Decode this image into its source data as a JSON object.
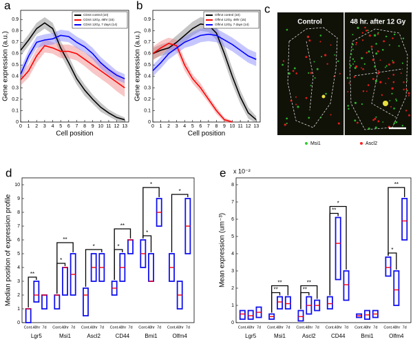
{
  "chart_data": [
    {
      "type": "line",
      "panel": "a",
      "xlabel": "Cell position",
      "ylabel": "Gene expression (a.u.)",
      "x": [
        0,
        1,
        2,
        3,
        4,
        5,
        6,
        7,
        8,
        9,
        10,
        11,
        12,
        13
      ],
      "xlim": [
        0,
        13.5
      ],
      "xticks": [
        0,
        1,
        2,
        3,
        4,
        5,
        6,
        7,
        8,
        9,
        10,
        11,
        12,
        13
      ],
      "ylim": [
        0,
        0.98
      ],
      "yticks": [
        0,
        0.1,
        0.2,
        0.3,
        0.4,
        0.5,
        0.6,
        0.7,
        0.8,
        0.9
      ],
      "legend": "upper right",
      "series": [
        {
          "name": "CD44 control (10)",
          "color": "#000000",
          "band_color": "#808080",
          "values": [
            0.63,
            0.72,
            0.82,
            0.87,
            0.82,
            0.65,
            0.52,
            0.38,
            0.28,
            0.2,
            0.13,
            0.08,
            0.04,
            0.02
          ],
          "error": [
            0.05,
            0.05,
            0.05,
            0.05,
            0.05,
            0.06,
            0.06,
            0.05,
            0.05,
            0.04,
            0.04,
            0.03,
            0.03,
            0.02
          ]
        },
        {
          "name": "CD44 12Gy, 48hr (15)",
          "color": "#ff0000",
          "band_color": "#f08080",
          "values": [
            0.37,
            0.45,
            0.58,
            0.67,
            0.65,
            0.62,
            0.62,
            0.6,
            0.55,
            0.5,
            0.45,
            0.4,
            0.35,
            0.3
          ],
          "error": [
            0.05,
            0.06,
            0.06,
            0.06,
            0.05,
            0.06,
            0.06,
            0.06,
            0.06,
            0.07,
            0.07,
            0.07,
            0.08,
            0.08
          ]
        },
        {
          "name": "CD44 12Gy, 7 days (14)",
          "color": "#0000ff",
          "band_color": "#8080ff",
          "values": [
            0.42,
            0.58,
            0.7,
            0.72,
            0.73,
            0.76,
            0.75,
            0.7,
            0.66,
            0.6,
            0.52,
            0.46,
            0.41,
            0.38
          ],
          "error": [
            0.05,
            0.05,
            0.05,
            0.05,
            0.05,
            0.05,
            0.05,
            0.05,
            0.05,
            0.05,
            0.05,
            0.05,
            0.04,
            0.04
          ]
        }
      ]
    },
    {
      "type": "line",
      "panel": "b",
      "xlabel": "Cell position",
      "ylabel": "Gene expression (a.u.)",
      "x": [
        0,
        1,
        2,
        3,
        4,
        5,
        6,
        7,
        8,
        9,
        10,
        11,
        12,
        13
      ],
      "xlim": [
        0,
        13.5
      ],
      "xticks": [
        0,
        1,
        2,
        3,
        4,
        5,
        6,
        7,
        8,
        9,
        10,
        11,
        12,
        13
      ],
      "ylim": [
        0,
        0.98
      ],
      "yticks": [
        0,
        0.1,
        0.2,
        0.3,
        0.4,
        0.5,
        0.6,
        0.7,
        0.8,
        0.9
      ],
      "legend": "upper right",
      "series": [
        {
          "name": "Olfm4 control (10)",
          "color": "#000000",
          "band_color": "#808080",
          "values": [
            0.6,
            0.63,
            0.65,
            0.7,
            0.76,
            0.82,
            0.86,
            0.85,
            0.78,
            0.6,
            0.4,
            0.22,
            0.08,
            0.02
          ],
          "error": [
            0.05,
            0.05,
            0.05,
            0.06,
            0.06,
            0.06,
            0.06,
            0.06,
            0.06,
            0.07,
            0.07,
            0.06,
            0.05,
            0.03
          ]
        },
        {
          "name": "Olfm4 12Gy, 48hr (15)",
          "color": "#ff0000",
          "band_color": "#f08080",
          "values": [
            0.6,
            0.65,
            0.69,
            0.67,
            0.5,
            0.38,
            0.3,
            0.2,
            0.1,
            0.02,
            0.0,
            null,
            null,
            null
          ],
          "error": [
            0.06,
            0.06,
            0.05,
            0.05,
            0.05,
            0.04,
            0.04,
            0.03,
            0.03,
            0.02,
            0.01,
            null,
            null,
            null
          ]
        },
        {
          "name": "Olfm4 12Gy, 7 days (14)",
          "color": "#0000ff",
          "band_color": "#8080ff",
          "values": [
            0.45,
            0.52,
            0.6,
            0.65,
            0.7,
            0.73,
            0.76,
            0.77,
            0.76,
            0.72,
            0.68,
            0.63,
            0.58,
            0.55
          ],
          "error": [
            0.05,
            0.05,
            0.05,
            0.05,
            0.05,
            0.06,
            0.06,
            0.06,
            0.06,
            0.06,
            0.06,
            0.06,
            0.06,
            0.06
          ]
        }
      ]
    },
    {
      "type": "box",
      "panel": "d",
      "ylabel": "Median position of expression profile",
      "groups": [
        "Lgr5",
        "Msi1",
        "Ascl2",
        "CD44",
        "Bmi1",
        "Olfm4"
      ],
      "categories": [
        "Cont.",
        "48hr",
        "7d"
      ],
      "ylim": [
        0,
        10.5
      ],
      "yticks": [
        0,
        1,
        2,
        3,
        4,
        5,
        6,
        7,
        8,
        9,
        10
      ],
      "boxes": [
        [
          {
            "low": 0,
            "median": 1,
            "high": 1
          },
          {
            "low": 1.5,
            "median": 2,
            "high": 3
          },
          {
            "low": 1,
            "median": 2,
            "high": 2
          }
        ],
        [
          {
            "low": 1,
            "median": 2,
            "high": 2
          },
          {
            "low": 2,
            "median": 4,
            "high": 4
          },
          {
            "low": 2,
            "median": 3.5,
            "high": 5
          }
        ],
        [
          {
            "low": 0.5,
            "median": 2,
            "high": 2.5
          },
          {
            "low": 3,
            "median": 4,
            "high": 5
          },
          {
            "low": 3,
            "median": 4,
            "high": 5
          }
        ],
        [
          {
            "low": 2,
            "median": 2.5,
            "high": 3
          },
          {
            "low": 3,
            "median": 4,
            "high": 5
          },
          {
            "low": 5,
            "median": 6,
            "high": 6
          }
        ],
        [
          {
            "low": 4,
            "median": 5,
            "high": 6
          },
          {
            "low": 3,
            "median": 3,
            "high": 5
          },
          {
            "low": 7,
            "median": 8,
            "high": 9
          }
        ],
        [
          {
            "low": 3,
            "median": 4,
            "high": 5
          },
          {
            "low": 1,
            "median": 2,
            "high": 3
          },
          {
            "low": 5,
            "median": 7,
            "high": 9
          }
        ]
      ],
      "significance": [
        {
          "group": 0,
          "from": 0,
          "to": 1,
          "label": "**"
        },
        {
          "group": 1,
          "from": 0,
          "to": 1,
          "label": "*"
        },
        {
          "group": 1,
          "from": 0,
          "to": 2,
          "label": "**"
        },
        {
          "group": 2,
          "from": 0,
          "to": 2,
          "label": "*"
        },
        {
          "group": 3,
          "from": 0,
          "to": 1,
          "label": "*"
        },
        {
          "group": 3,
          "from": 0,
          "to": 2,
          "label": "**"
        },
        {
          "group": 4,
          "from": 0,
          "to": 1,
          "label": "*"
        },
        {
          "group": 4,
          "from": 0,
          "to": 2,
          "label": "*"
        },
        {
          "group": 5,
          "from": 0,
          "to": 2,
          "label": "*"
        }
      ]
    },
    {
      "type": "box",
      "panel": "e",
      "ylabel": "Mean expression (um⁻³)",
      "ymultiplier": "x 10⁻²",
      "groups": [
        "Lgr5",
        "Msi1",
        "Ascl2",
        "CD44",
        "Bmi1",
        "Olfm4"
      ],
      "categories": [
        "Cont.",
        "48hr",
        "7d"
      ],
      "ylim": [
        0,
        8.4
      ],
      "yticks": [
        0,
        1,
        2,
        3,
        4,
        5,
        6,
        7,
        8
      ],
      "boxes": [
        [
          {
            "low": 0.2,
            "median": 0.5,
            "high": 0.7
          },
          {
            "low": 0.2,
            "median": 0.4,
            "high": 0.7
          },
          {
            "low": 0.3,
            "median": 0.6,
            "high": 0.9
          }
        ],
        [
          {
            "low": 0.2,
            "median": 0.35,
            "high": 0.5
          },
          {
            "low": 0.8,
            "median": 1.2,
            "high": 1.5
          },
          {
            "low": 0.8,
            "median": 1.1,
            "high": 1.5
          }
        ],
        [
          {
            "low": 0.1,
            "median": 0.35,
            "high": 0.7
          },
          {
            "low": 0.5,
            "median": 1,
            "high": 1.5
          },
          {
            "low": 0.7,
            "median": 1,
            "high": 1.3
          }
        ],
        [
          {
            "low": 0.8,
            "median": 1.1,
            "high": 1.5
          },
          {
            "low": 2.5,
            "median": 4.6,
            "high": 6.1
          },
          {
            "low": 1.3,
            "median": 2.2,
            "high": 3
          }
        ],
        [
          {
            "low": 0.3,
            "median": 0.4,
            "high": 0.5
          },
          {
            "low": 0.2,
            "median": 0.45,
            "high": 0.7
          },
          {
            "low": 0.3,
            "median": 0.5,
            "high": 0.7
          }
        ],
        [
          {
            "low": 2.7,
            "median": 3.2,
            "high": 3.8
          },
          {
            "low": 1,
            "median": 1.9,
            "high": 3
          },
          {
            "low": 4.8,
            "median": 5.9,
            "high": 7.2
          }
        ]
      ],
      "significance": [
        {
          "group": 1,
          "from": 0,
          "to": 1,
          "label": "**"
        },
        {
          "group": 1,
          "from": 0,
          "to": 2,
          "label": "**"
        },
        {
          "group": 2,
          "from": 0,
          "to": 1,
          "label": "**"
        },
        {
          "group": 2,
          "from": 0,
          "to": 2,
          "label": "**"
        },
        {
          "group": 3,
          "from": 0,
          "to": 1,
          "label": "**"
        },
        {
          "group": 3,
          "from": 0,
          "to": 2,
          "label": "*"
        },
        {
          "group": 5,
          "from": 0,
          "to": 1,
          "label": "*"
        },
        {
          "group": 5,
          "from": 0,
          "to": 2,
          "label": "**"
        }
      ]
    }
  ],
  "image_panel": {
    "panel": "c",
    "left_title": "Control",
    "right_title": "48 hr. after 12 Gy",
    "legend": [
      {
        "name": "Msi1",
        "color": "#33cc33"
      },
      {
        "name": "Ascl2",
        "color": "#ff2020"
      }
    ]
  }
}
